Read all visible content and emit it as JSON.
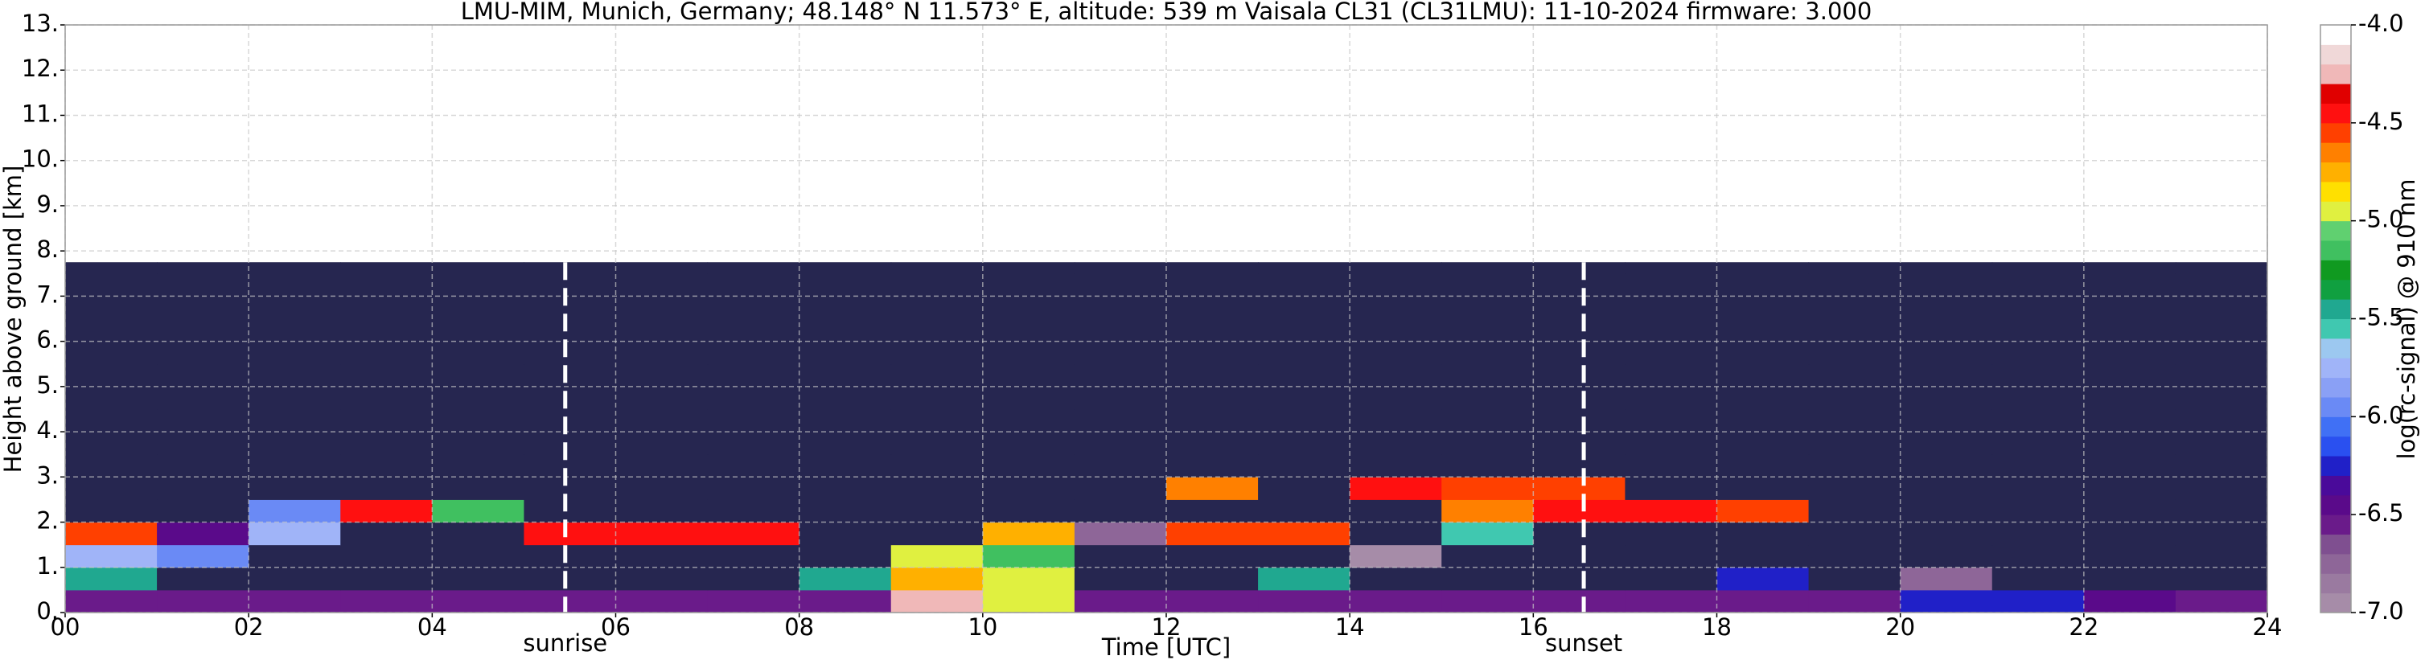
{
  "chart_data": {
    "type": "heatmap",
    "title": "LMU-MIM, Munich, Germany; 48.148° N 11.573° E, altitude: 539 m    Vaisala CL31 (CL31LMU): 11-10-2024    firmware: 3.000",
    "xlabel": "Time [UTC]",
    "ylabel": "Height above ground [km]",
    "colorbar_label": "log(rc-signal) @ 910 nm",
    "xlim": [
      0,
      24
    ],
    "ylim": [
      0,
      13
    ],
    "xticks": [
      {
        "value": 0,
        "label": "00"
      },
      {
        "value": 2,
        "label": "02"
      },
      {
        "value": 4,
        "label": "04"
      },
      {
        "value": 6,
        "label": "06"
      },
      {
        "value": 8,
        "label": "08"
      },
      {
        "value": 10,
        "label": "10"
      },
      {
        "value": 12,
        "label": "12"
      },
      {
        "value": 14,
        "label": "14"
      },
      {
        "value": 16,
        "label": "16"
      },
      {
        "value": 18,
        "label": "18"
      },
      {
        "value": 20,
        "label": "20"
      },
      {
        "value": 22,
        "label": "22"
      },
      {
        "value": 24,
        "label": "24"
      }
    ],
    "yticks": [
      {
        "value": 0,
        "label": "0."
      },
      {
        "value": 1,
        "label": "1."
      },
      {
        "value": 2,
        "label": "2."
      },
      {
        "value": 3,
        "label": "3."
      },
      {
        "value": 4,
        "label": "4."
      },
      {
        "value": 5,
        "label": "5."
      },
      {
        "value": 6,
        "label": "6."
      },
      {
        "value": 7,
        "label": "7."
      },
      {
        "value": 8,
        "label": "8."
      },
      {
        "value": 9,
        "label": "9."
      },
      {
        "value": 10,
        "label": "10."
      },
      {
        "value": 11,
        "label": "11."
      },
      {
        "value": 12,
        "label": "12."
      },
      {
        "value": 13,
        "label": "13."
      }
    ],
    "grid": true,
    "annotations": [
      {
        "x": 5.45,
        "label": "sunrise"
      },
      {
        "x": 16.55,
        "label": "sunset"
      }
    ],
    "zlim": [
      -7,
      -4
    ],
    "zticks": [
      {
        "value": -7,
        "label": "-7.0"
      },
      -6.5,
      {
        "value": -6,
        "label": "-6.0"
      },
      -5.5,
      {
        "value": -5,
        "label": "-5.0"
      },
      -4.5,
      {
        "value": -4,
        "label": "-4.0"
      }
    ],
    "colors": [
      "#a68ca8",
      "#9a7aa0",
      "#8e6698",
      "#7f4f90",
      "#6a1b8a",
      "#5a0a8a",
      "#4a0a9a",
      "#2020c8",
      "#2a50f0",
      "#4070f5",
      "#6a8af5",
      "#8aa0f5",
      "#a0b4f8",
      "#9cc8f0",
      "#40c8b0",
      "#20a890",
      "#10a040",
      "#109a20",
      "#40c060",
      "#60d070",
      "#e0f040",
      "#ffe000",
      "#ffb000",
      "#ff8000",
      "#ff4000",
      "#ff1010",
      "#e00000",
      "#f0b8b8",
      "#f0d8d8",
      "#ffffff"
    ],
    "under_color": "#262650",
    "x_edges": [
      0,
      1,
      2,
      3,
      4,
      5,
      6,
      7,
      8,
      9,
      10,
      11,
      12,
      13,
      14,
      15,
      16,
      17,
      18,
      19,
      20,
      21,
      22,
      23,
      24
    ],
    "y_edges": [
      0,
      0.5,
      1,
      1.5,
      2,
      2.5,
      3,
      3.5,
      4,
      4.5,
      5,
      5.5,
      6,
      6.5,
      7,
      7.5,
      7.75
    ],
    "z": [
      [
        -6.6,
        -6.6,
        -6.6,
        -6.6,
        -6.6,
        -6.6,
        -6.6,
        -6.6,
        -6.6,
        -4.3,
        -5.0,
        -6.6,
        -6.6,
        -6.6,
        -6.6,
        -6.6,
        -6.6,
        -6.6,
        -6.6,
        -6.6,
        -6.3,
        -6.3,
        -6.4,
        -6.6
      ],
      [
        -5.5,
        -7.2,
        -7.2,
        -7.2,
        -7.2,
        -7.2,
        -7.2,
        -7.2,
        -5.5,
        -4.8,
        -4.9,
        -7.2,
        -7.2,
        -5.4,
        -7.2,
        -7.2,
        -7.2,
        -7.2,
        -6.2,
        -7.2,
        -6.8,
        -7.2,
        -7.2,
        -7.2
      ],
      [
        -5.8,
        -6.0,
        -7.3,
        -7.3,
        -7.3,
        -7.3,
        -7.3,
        -7.3,
        -7.3,
        -4.9,
        -5.2,
        -7.3,
        -7.3,
        -7.3,
        -7.0,
        -7.3,
        -7.3,
        -7.3,
        -7.3,
        -7.3,
        -7.3,
        -7.3,
        -7.3,
        -7.3
      ],
      [
        -4.6,
        -6.5,
        -5.8,
        -7.3,
        -7.3,
        -4.5,
        -4.4,
        -4.5,
        -7.3,
        -7.3,
        -4.8,
        -6.8,
        -4.6,
        -4.6,
        -7.3,
        -5.6,
        -7.3,
        -7.3,
        -7.3,
        -7.3,
        -7.3,
        -7.3,
        -7.3,
        -7.3
      ],
      [
        -7.3,
        -7.3,
        -6.0,
        -4.5,
        -5.2,
        -7.3,
        -7.3,
        -7.3,
        -7.3,
        -7.3,
        -7.3,
        -7.3,
        -7.3,
        -7.3,
        -7.3,
        -4.7,
        -4.5,
        -4.5,
        -4.6,
        -7.3,
        -7.3,
        -7.3,
        -7.3,
        -7.3
      ],
      [
        -7.3,
        -7.3,
        -7.3,
        -7.3,
        -7.3,
        -7.3,
        -7.3,
        -7.3,
        -7.3,
        -7.3,
        -7.3,
        -7.3,
        -4.7,
        -7.3,
        -4.5,
        -4.6,
        -4.6,
        -7.3,
        -7.3,
        -7.3,
        -7.3,
        -7.3,
        -7.3,
        -7.3
      ],
      [
        -7.3,
        -7.3,
        -7.3,
        -7.3,
        -7.3,
        -7.3,
        -7.3,
        -7.1,
        -7.1,
        -7.1,
        -7.1,
        -7.1,
        -7.1,
        -7.3,
        -7.3,
        -7.3,
        -7.3,
        -7.3,
        -7.3,
        -7.3,
        -7.3,
        -7.3,
        -7.3,
        -7.3
      ],
      [
        -7.3,
        -7.3,
        -7.3,
        -7.3,
        -7.3,
        -7.3,
        -7.3,
        -7.1,
        -7.1,
        -7.1,
        -7.1,
        -7.1,
        -7.1,
        -7.3,
        -7.3,
        -7.3,
        -7.3,
        -7.3,
        -7.3,
        -7.3,
        -7.3,
        -7.3,
        -7.3,
        -7.3
      ],
      [
        -7.3,
        -7.3,
        -7.3,
        -7.3,
        -7.3,
        -7.3,
        -7.3,
        -7.1,
        -7.1,
        -7.1,
        -7.1,
        -7.1,
        -7.1,
        -7.3,
        -7.3,
        -7.3,
        -7.3,
        -7.3,
        -7.3,
        -7.3,
        -7.3,
        -7.3,
        -7.3,
        -7.3
      ],
      [
        -7.3,
        -7.3,
        -7.3,
        -7.3,
        -7.3,
        -7.3,
        -7.3,
        -7.1,
        -7.1,
        -7.1,
        -7.1,
        -7.1,
        -7.1,
        -7.3,
        -7.3,
        -7.3,
        -7.3,
        -7.3,
        -7.3,
        -7.3,
        -7.3,
        -7.3,
        -7.3,
        -7.3
      ],
      [
        -7.3,
        -7.3,
        -7.3,
        -7.3,
        -7.3,
        -7.3,
        -7.3,
        -7.1,
        -7.1,
        -7.1,
        -7.1,
        -7.1,
        -7.1,
        -7.3,
        -7.3,
        -7.3,
        -7.3,
        -7.3,
        -7.3,
        -7.3,
        -7.3,
        -7.3,
        -7.3,
        -7.3
      ],
      [
        -7.3,
        -7.3,
        -7.3,
        -7.3,
        -7.3,
        -7.3,
        -7.3,
        -7.1,
        -7.1,
        -7.1,
        -7.1,
        -7.1,
        -7.1,
        -7.3,
        -7.3,
        -7.3,
        -7.3,
        -7.3,
        -7.3,
        -7.3,
        -7.3,
        -7.3,
        -7.3,
        -7.3
      ],
      [
        -7.3,
        -7.3,
        -7.3,
        -7.3,
        -7.3,
        -7.3,
        -7.3,
        -7.1,
        -7.1,
        -7.1,
        -7.1,
        -7.1,
        -7.1,
        -7.3,
        -7.3,
        -7.3,
        -7.3,
        -7.3,
        -7.3,
        -7.3,
        -7.3,
        -7.3,
        -7.3,
        -7.3
      ],
      [
        -7.3,
        -7.3,
        -7.3,
        -7.3,
        -7.3,
        -7.3,
        -7.3,
        -7.1,
        -7.1,
        -7.1,
        -7.1,
        -7.1,
        -7.1,
        -7.3,
        -7.3,
        -7.3,
        -7.3,
        -7.3,
        -7.3,
        -7.3,
        -7.3,
        -7.3,
        -7.3,
        -7.3
      ],
      [
        -7.3,
        -7.3,
        -7.3,
        -7.3,
        -7.3,
        -7.3,
        -7.3,
        -7.1,
        -7.1,
        -7.1,
        -7.1,
        -7.1,
        -7.1,
        -7.3,
        -7.3,
        -7.3,
        -7.3,
        -7.3,
        -7.3,
        -7.3,
        -7.3,
        -7.3,
        -7.3,
        -7.3
      ],
      [
        -7.3,
        -7.3,
        -7.3,
        -7.3,
        -7.3,
        -7.3,
        -7.3,
        -7.1,
        -7.1,
        -7.1,
        -7.1,
        -7.1,
        -7.1,
        -7.3,
        -7.3,
        -7.3,
        -7.3,
        -7.3,
        -7.3,
        -7.3,
        -7.3,
        -7.3,
        -7.3,
        -7.3
      ]
    ]
  }
}
